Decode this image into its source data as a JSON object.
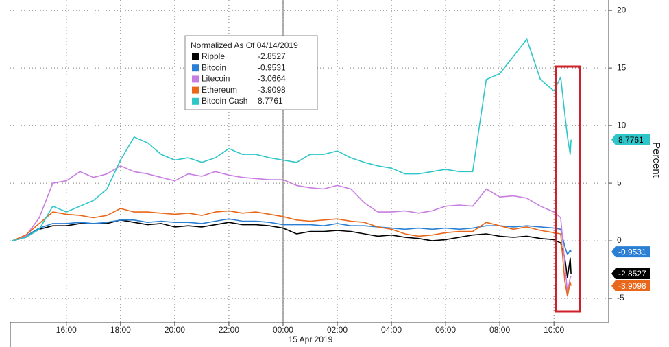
{
  "chart_data": {
    "type": "line",
    "legend_title": "Normalized As Of 04/14/2019",
    "y_label": "Percent",
    "annotation": "15 Apr 2019",
    "x": [
      14,
      14.5,
      15,
      15.5,
      16,
      16.5,
      17,
      17.5,
      18,
      18.5,
      19,
      19.5,
      20,
      20.5,
      21,
      21.5,
      22,
      22.5,
      23,
      23.5,
      24,
      24.5,
      25,
      25.5,
      26,
      26.5,
      27,
      27.5,
      28,
      28.5,
      29,
      29.5,
      30,
      30.5,
      31,
      31.5,
      32,
      32.5,
      33,
      33.5,
      34,
      34.25,
      34.4,
      34.5,
      34.6,
      34.63
    ],
    "series": [
      {
        "name": "Ripple",
        "color": "#000000",
        "end_tag": true,
        "values": [
          0,
          0.3,
          1.0,
          1.3,
          1.3,
          1.5,
          1.5,
          1.5,
          1.8,
          1.6,
          1.4,
          1.5,
          1.2,
          1.3,
          1.2,
          1.4,
          1.6,
          1.4,
          1.4,
          1.3,
          1.1,
          0.6,
          0.8,
          0.8,
          0.9,
          0.8,
          0.6,
          0.4,
          0.5,
          0.3,
          0.2,
          0,
          0.1,
          0.3,
          0.5,
          0.6,
          0.4,
          0.3,
          0.4,
          0.2,
          0.1,
          -0.2,
          -1.5,
          -3.2,
          -1.5,
          -2.8527
        ]
      },
      {
        "name": "Bitcoin",
        "color": "#2a7fd4",
        "end_tag": true,
        "values": [
          0,
          0.4,
          1.1,
          1.5,
          1.5,
          1.6,
          1.5,
          1.6,
          1.8,
          1.8,
          1.6,
          1.7,
          1.6,
          1.6,
          1.5,
          1.7,
          1.9,
          1.7,
          1.7,
          1.6,
          1.4,
          1.4,
          1.4,
          1.3,
          1.5,
          1.3,
          1.3,
          1.2,
          1.1,
          1.0,
          1.1,
          1.0,
          1.1,
          1.0,
          1.1,
          1.3,
          1.3,
          1.2,
          1.3,
          1.2,
          1.1,
          1.0,
          -0.5,
          -1.2,
          -0.8,
          -0.9531
        ]
      },
      {
        "name": "Litecoin",
        "color": "#c77ee0",
        "end_tag": false,
        "values": [
          0,
          0.4,
          2.0,
          5.0,
          5.2,
          6.0,
          5.5,
          5.8,
          6.5,
          6.0,
          5.8,
          5.5,
          5.2,
          5.8,
          5.6,
          6.0,
          5.7,
          5.5,
          5.4,
          5.3,
          5.3,
          4.8,
          4.6,
          4.5,
          4.8,
          4.5,
          3.3,
          2.5,
          2.5,
          2.6,
          2.4,
          2.6,
          3.0,
          3.1,
          3.0,
          4.5,
          3.8,
          3.9,
          3.7,
          3.0,
          2.5,
          2.0,
          -2.0,
          -4.5,
          -3.2,
          -3.0664
        ]
      },
      {
        "name": "Ethereum",
        "color": "#e8671a",
        "end_tag": true,
        "values": [
          0,
          0.5,
          1.5,
          2.5,
          2.3,
          2.2,
          2.0,
          2.2,
          2.8,
          2.5,
          2.5,
          2.4,
          2.3,
          2.4,
          2.2,
          2.5,
          2.6,
          2.4,
          2.5,
          2.3,
          2.1,
          1.8,
          1.7,
          1.8,
          1.9,
          1.7,
          1.6,
          1.2,
          1.0,
          0.6,
          0.4,
          0.5,
          0.7,
          0.8,
          0.8,
          1.6,
          1.3,
          1.0,
          1.2,
          0.9,
          0.7,
          0.6,
          -3.5,
          -4.8,
          -3.6,
          -3.9098
        ]
      },
      {
        "name": "Bitcoin Cash",
        "color": "#2ec6c8",
        "end_tag": true,
        "values": [
          0,
          0.3,
          1,
          3,
          2.5,
          3,
          3.5,
          4.5,
          7,
          9,
          8.5,
          7.5,
          7,
          7.2,
          6.8,
          7.2,
          8,
          7.5,
          7.5,
          7.2,
          7,
          6.8,
          7.5,
          7.5,
          7.8,
          7.2,
          6.8,
          6.5,
          6.3,
          5.8,
          5.8,
          6.0,
          6.2,
          6.0,
          6.0,
          14,
          14.5,
          16,
          17.5,
          14,
          13,
          14.2,
          11,
          9,
          7.5,
          8.7761
        ]
      }
    ],
    "xlim": [
      13.93,
      36.02
    ],
    "xticks": [
      {
        "value": 16,
        "label": "16:00"
      },
      {
        "value": 18,
        "label": "18:00"
      },
      {
        "value": 20,
        "label": "20:00"
      },
      {
        "value": 22,
        "label": "22:00"
      },
      {
        "value": 24,
        "label": "00:00"
      },
      {
        "value": 26,
        "label": "02:00"
      },
      {
        "value": 28,
        "label": "04:00"
      },
      {
        "value": 30,
        "label": "06:00"
      },
      {
        "value": 32,
        "label": "08:00"
      },
      {
        "value": 34,
        "label": "10:00"
      }
    ],
    "ylim": [
      -7.08,
      20.9
    ],
    "yticks": [
      -5,
      0,
      5,
      10,
      15,
      20
    ],
    "grid": true
  }
}
